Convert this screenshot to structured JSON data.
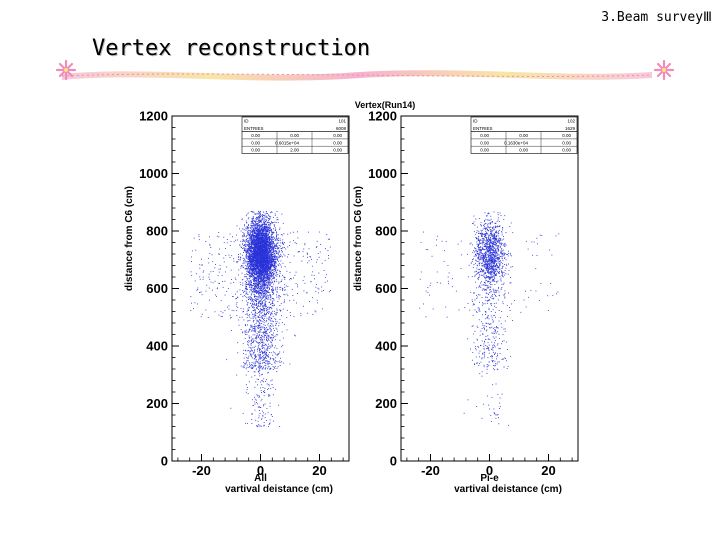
{
  "header": {
    "corner_label": "3.Beam surveyⅢ",
    "slide_title": "Vertex reconstruction"
  },
  "colors": {
    "points": "#2a32d8",
    "frame": "#000000",
    "ribbon_pink": "#f3a6c8",
    "ribbon_yellow": "#f7e08a"
  },
  "chart_data": [
    {
      "type": "scatter",
      "title": "Vertex(Run14)",
      "panel_label": "All",
      "xlabel": "vartival deistance (cm)",
      "ylabel": "distance from C6 (cm)",
      "xlim": [
        -30,
        30
      ],
      "ylim": [
        0,
        1200
      ],
      "xticks": [
        "-20",
        "0",
        "20"
      ],
      "yticks": [
        "0",
        "200",
        "400",
        "600",
        "800",
        "1000",
        "1200"
      ],
      "stats": {
        "header": [
          [
            "ID",
            "101"
          ],
          [
            "ENTRIES",
            "6008"
          ]
        ],
        "rows": [
          [
            "0.00",
            "0.00",
            "0.00"
          ],
          [
            "0.00",
            "0.6015e+04",
            "0.00"
          ],
          [
            "0.00",
            "2.00",
            "0.00"
          ]
        ]
      },
      "distribution": {
        "core_x": 0,
        "core_x_sd": 2.5,
        "core_y": 720,
        "core_y_sd": 60,
        "y_max": 870,
        "n": 6008
      }
    },
    {
      "type": "scatter",
      "title": "",
      "panel_label": "Pi-e",
      "xlabel": "vartival deistance (cm)",
      "ylabel": "distance from C6 (cm)",
      "xlim": [
        -30,
        30
      ],
      "ylim": [
        0,
        1200
      ],
      "xticks": [
        "-20",
        "0",
        "20"
      ],
      "yticks": [
        "0",
        "200",
        "400",
        "600",
        "800",
        "1000",
        "1200"
      ],
      "stats": {
        "header": [
          [
            "ID",
            "102"
          ],
          [
            "ENTRIES",
            "1629"
          ]
        ],
        "rows": [
          [
            "0.00",
            "0.00",
            "0.00"
          ],
          [
            "0.00",
            "0.1630e+04",
            "0.00"
          ],
          [
            "0.00",
            "0.00",
            "0.00"
          ]
        ]
      },
      "distribution": {
        "core_x": 0,
        "core_x_sd": 2.5,
        "core_y": 720,
        "core_y_sd": 60,
        "y_max": 870,
        "n": 1629
      }
    }
  ]
}
